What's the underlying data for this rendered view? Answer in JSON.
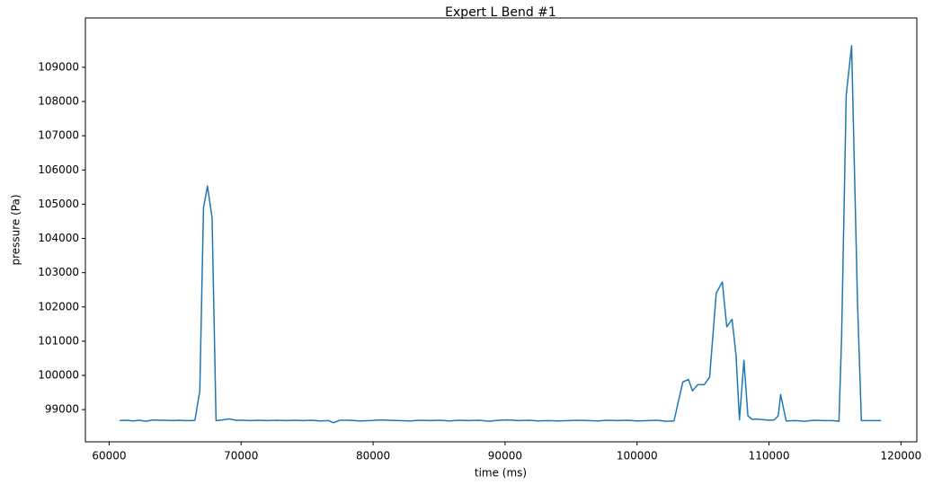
{
  "chart_data": {
    "type": "line",
    "title": "Expert L Bend #1",
    "x_label": "time (ms)",
    "y_label": "pressure (Pa)",
    "color": "#1f77b4",
    "x": [
      60800,
      61300,
      61800,
      62300,
      62800,
      63300,
      63800,
      64300,
      64800,
      65300,
      65800,
      66300,
      66500,
      66870,
      67150,
      67450,
      67800,
      68100,
      68600,
      69100,
      69600,
      70100,
      70700,
      71300,
      72000,
      72700,
      73400,
      74100,
      74700,
      75300,
      76000,
      76600,
      77000,
      77500,
      78200,
      79000,
      79800,
      80500,
      81200,
      82000,
      82800,
      83500,
      84300,
      85000,
      85800,
      86500,
      87200,
      88000,
      88800,
      89500,
      90200,
      91000,
      91800,
      92500,
      93300,
      94000,
      94800,
      95500,
      96300,
      97000,
      97800,
      98500,
      99300,
      100000,
      100800,
      101500,
      102200,
      102800,
      103470,
      103900,
      104200,
      104600,
      105100,
      105500,
      106000,
      106460,
      106800,
      107200,
      107500,
      107760,
      108100,
      108400,
      108700,
      109200,
      110000,
      110400,
      110700,
      110880,
      111300,
      112000,
      112700,
      113400,
      114100,
      114800,
      115300,
      115500,
      115850,
      116260,
      116700,
      117000,
      117700,
      118500
    ],
    "values": [
      98680,
      98690,
      98670,
      98690,
      98660,
      98700,
      98690,
      98690,
      98680,
      98690,
      98680,
      98680,
      98690,
      99550,
      104900,
      105530,
      104600,
      98680,
      98700,
      98730,
      98690,
      98690,
      98680,
      98690,
      98680,
      98690,
      98680,
      98690,
      98680,
      98690,
      98670,
      98680,
      98620,
      98690,
      98690,
      98670,
      98680,
      98700,
      98690,
      98680,
      98670,
      98690,
      98680,
      98690,
      98670,
      98690,
      98680,
      98690,
      98660,
      98690,
      98700,
      98680,
      98690,
      98670,
      98680,
      98670,
      98680,
      98690,
      98680,
      98670,
      98690,
      98680,
      98690,
      98670,
      98680,
      98690,
      98660,
      98670,
      99810,
      99880,
      99550,
      99730,
      99730,
      99950,
      102400,
      102730,
      101420,
      101640,
      100600,
      98700,
      100440,
      98820,
      98720,
      98720,
      98690,
      98700,
      98820,
      99440,
      98670,
      98680,
      98660,
      98690,
      98680,
      98680,
      98660,
      101100,
      108190,
      109630,
      102200,
      98680,
      98680,
      98680
    ],
    "xlim": [
      58200,
      121200
    ],
    "ylim": [
      98060,
      110440
    ],
    "xticks": [
      60000,
      70000,
      80000,
      90000,
      100000,
      110000,
      120000
    ],
    "yticks": [
      99000,
      100000,
      101000,
      102000,
      103000,
      104000,
      105000,
      106000,
      107000,
      108000,
      109000
    ]
  }
}
